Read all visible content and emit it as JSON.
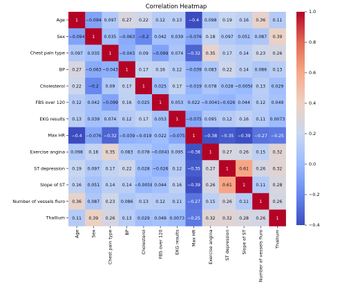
{
  "chart_data": {
    "type": "heatmap",
    "title": "Correlation Heatmap",
    "labels": [
      "Age",
      "Sex",
      "Chest pain type",
      "BP",
      "Cholesterol",
      "FBS over 120",
      "EKG results",
      "Max HR",
      "Exercise angina",
      "ST depression",
      "Slope of ST",
      "Number of vessels fluro",
      "Thallium"
    ],
    "matrix": [
      [
        1,
        -0.094,
        0.097,
        0.27,
        0.22,
        0.12,
        0.13,
        -0.4,
        0.098,
        0.19,
        0.16,
        0.36,
        0.11
      ],
      [
        -0.094,
        1,
        0.035,
        -0.063,
        -0.2,
        0.042,
        0.039,
        -0.076,
        0.18,
        0.097,
        0.051,
        0.087,
        0.39
      ],
      [
        0.097,
        0.035,
        1,
        -0.043,
        0.09,
        -0.099,
        0.074,
        -0.32,
        0.35,
        0.17,
        0.14,
        0.23,
        0.26
      ],
      [
        0.27,
        -0.063,
        -0.043,
        1,
        0.17,
        0.16,
        0.12,
        -0.039,
        0.083,
        0.22,
        0.14,
        0.086,
        0.13
      ],
      [
        0.22,
        -0.2,
        0.09,
        0.17,
        1,
        0.025,
        0.17,
        -0.019,
        0.078,
        0.028,
        -0.0058,
        0.13,
        0.029
      ],
      [
        0.12,
        0.042,
        -0.099,
        0.16,
        0.025,
        1,
        0.053,
        0.022,
        -0.0041,
        -0.026,
        0.044,
        0.12,
        0.049
      ],
      [
        0.13,
        0.039,
        0.074,
        0.12,
        0.17,
        0.053,
        1,
        -0.075,
        0.095,
        0.12,
        0.16,
        0.11,
        0.0073
      ],
      [
        -0.4,
        -0.076,
        -0.32,
        -0.039,
        -0.019,
        0.022,
        -0.075,
        1,
        -0.38,
        -0.35,
        -0.39,
        -0.27,
        -0.25
      ],
      [
        0.098,
        0.18,
        0.35,
        0.083,
        0.078,
        -0.0041,
        0.095,
        -0.38,
        1,
        0.27,
        0.26,
        0.15,
        0.32
      ],
      [
        0.19,
        0.097,
        0.17,
        0.22,
        0.028,
        -0.026,
        0.12,
        -0.35,
        0.27,
        1,
        0.61,
        0.26,
        0.32
      ],
      [
        0.16,
        0.051,
        0.14,
        0.14,
        -0.0058,
        0.044,
        0.16,
        -0.39,
        0.26,
        0.61,
        1,
        0.11,
        0.28
      ],
      [
        0.36,
        0.087,
        0.23,
        0.086,
        0.13,
        0.12,
        0.11,
        -0.27,
        0.15,
        0.26,
        0.11,
        1,
        0.26
      ],
      [
        0.11,
        0.39,
        0.26,
        0.13,
        0.029,
        0.049,
        0.0073,
        -0.25,
        0.32,
        0.32,
        0.28,
        0.26,
        1
      ]
    ],
    "colorbar": {
      "min": -0.4,
      "max": 1.0,
      "ticks": [
        "1.0",
        "0.8",
        "0.6",
        "0.4",
        "0.2",
        "0.0",
        "−0.2",
        "−0.4"
      ],
      "tick_values": [
        1.0,
        0.8,
        0.6,
        0.4,
        0.2,
        0.0,
        -0.2,
        -0.4
      ],
      "colormap": "coolwarm",
      "colors": [
        "#3b4cc0",
        "#6788ee",
        "#9abbff",
        "#c9d7f0",
        "#edd1c2",
        "#f7a889",
        "#e26952",
        "#b40426"
      ]
    }
  }
}
